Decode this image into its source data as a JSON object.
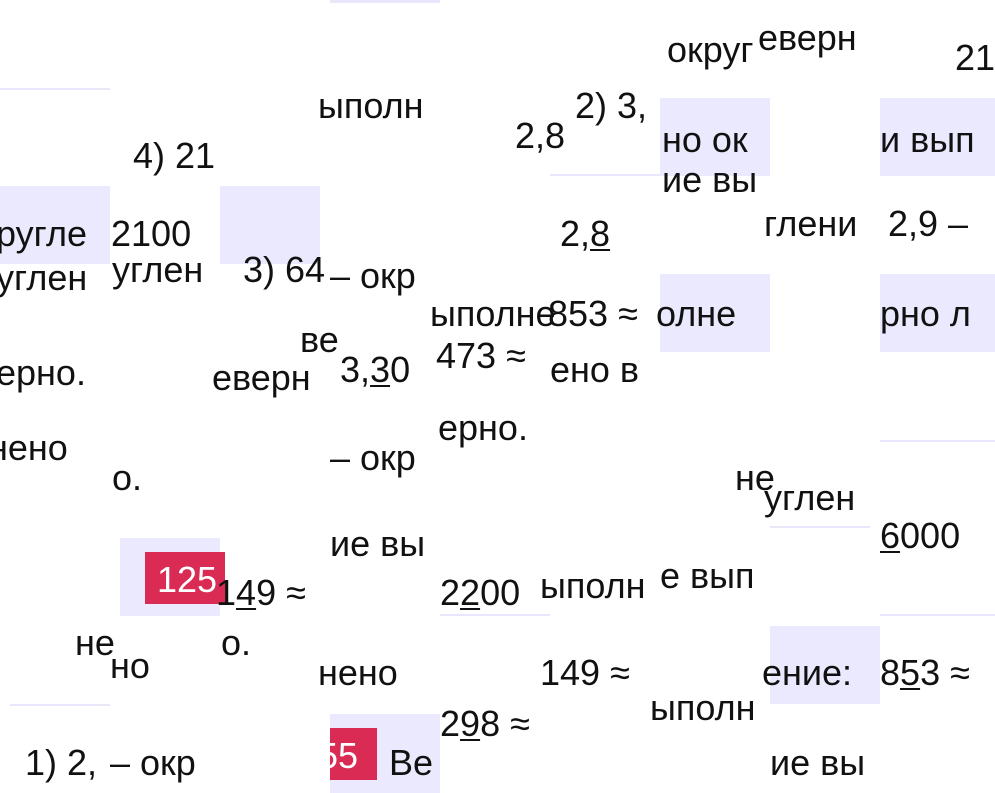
{
  "colors": {
    "highlight": "#ebe9fd",
    "badge": "#d92b54",
    "text": "#111111"
  },
  "fragments": {
    "f1": "округ",
    "f2": "еверн",
    "f3": "21",
    "f4": "4) 21",
    "f5": "ыполн",
    "f6": "2,8",
    "f7": "2) 3,",
    "f8": "но ок",
    "f9": "и вып",
    "f10": "ругле",
    "f11": "2100",
    "f12a": "2,",
    "f12b": "8",
    "f13": "ие вы",
    "f14": "глени",
    "f15": "2,9 –",
    "f16": "углен",
    "f17": "углен",
    "f18": "3) 64",
    "f19": "– окр",
    "f20": "ыполне",
    "f21": "853 ≈",
    "f22": "олне",
    "f23": "рно л",
    "f24": "ве",
    "f25": "ерно.",
    "f26": "еверн",
    "f27a": "3,",
    "f27b": "3",
    "f27c": "0",
    "f28": "473 ≈",
    "f29": "ено в",
    "f29b": "ерно.",
    "f30": "нено",
    "f31": "о.",
    "f32": "– окр",
    "f33": "не",
    "f34": "углен",
    "f35": "125",
    "f36a": "1",
    "f36b": "4",
    "f36c": "9 ≈",
    "f37": "ие вы",
    "f38a": "2",
    "f38b": "2",
    "f38c": "00",
    "f39": "ыполн",
    "f40": "е вып",
    "f41a": "6",
    "f41b": "000",
    "f42": "не",
    "f43": "но",
    "f44": "о.",
    "f45": "нено",
    "f46": "149 ≈",
    "f47": "ение:",
    "f48a": "8",
    "f48b": "5",
    "f48c": "3 ≈",
    "f49": "1) 2,",
    "f50": "– окр",
    "f51": "55",
    "f52": "Ве",
    "f53a": "2",
    "f53b": "9",
    "f53c": "8 ≈",
    "f54": "ыполн",
    "f55": "ие вы"
  }
}
